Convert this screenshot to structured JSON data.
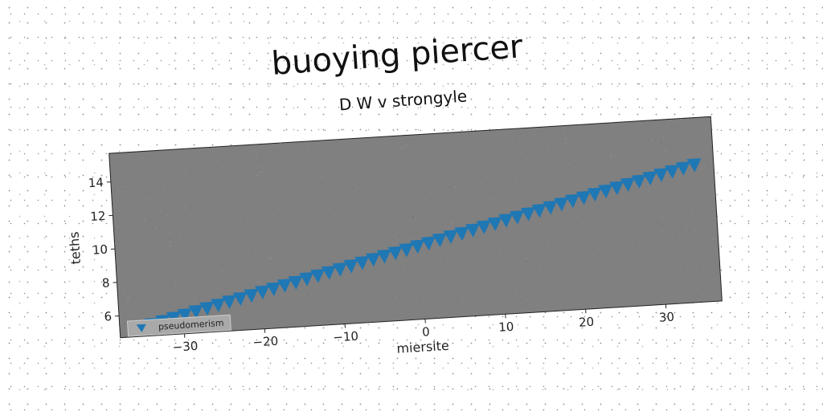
{
  "chart_data": {
    "type": "scatter",
    "title": "buoying piercer",
    "subtitle": "D W v strongyle",
    "xlabel": "miersite",
    "ylabel": "teths",
    "xlim": [
      -38,
      37
    ],
    "ylim": [
      4.7,
      15.7
    ],
    "xticks": [
      -30,
      -20,
      -10,
      0,
      10,
      20,
      30
    ],
    "yticks": [
      6,
      8,
      10,
      12,
      14
    ],
    "xtick_labels": [
      "−30",
      "−20",
      "−10",
      "0",
      "10",
      "20",
      "30"
    ],
    "ytick_labels": [
      "6",
      "8",
      "10",
      "12",
      "14"
    ],
    "grid": false,
    "legend_position": "lower-left",
    "colors": {
      "series": "#1f77b4",
      "axes_bg": "#808080"
    },
    "marker": "triangle-down",
    "series": [
      {
        "name": "pseudomerism",
        "x": [
          -34.0,
          -32.6,
          -31.2,
          -29.8,
          -28.4,
          -27.0,
          -25.6,
          -24.2,
          -22.8,
          -21.4,
          -20.0,
          -18.6,
          -17.2,
          -15.8,
          -14.4,
          -13.0,
          -11.6,
          -10.2,
          -8.8,
          -7.4,
          -6.0,
          -4.6,
          -3.2,
          -1.8,
          -0.4,
          1.0,
          2.4,
          3.8,
          5.2,
          6.6,
          8.0,
          9.4,
          10.8,
          12.2,
          13.6,
          15.0,
          16.4,
          17.8,
          19.2,
          20.6,
          22.0,
          23.4,
          24.8,
          26.2,
          27.6,
          29.0,
          30.4,
          31.8,
          33.2,
          34.6
        ],
        "y": [
          5.36,
          5.51,
          5.66,
          5.81,
          5.97,
          6.12,
          6.28,
          6.43,
          6.58,
          6.73,
          6.89,
          7.04,
          7.2,
          7.35,
          7.51,
          7.66,
          7.81,
          7.96,
          8.12,
          8.27,
          8.43,
          8.58,
          8.73,
          8.88,
          9.04,
          9.19,
          9.35,
          9.5,
          9.65,
          9.81,
          9.96,
          10.11,
          10.27,
          10.42,
          10.58,
          10.73,
          10.88,
          11.04,
          11.19,
          11.34,
          11.5,
          11.65,
          11.8,
          11.96,
          12.11,
          12.26,
          12.42,
          12.57,
          12.72,
          12.88
        ]
      }
    ]
  }
}
